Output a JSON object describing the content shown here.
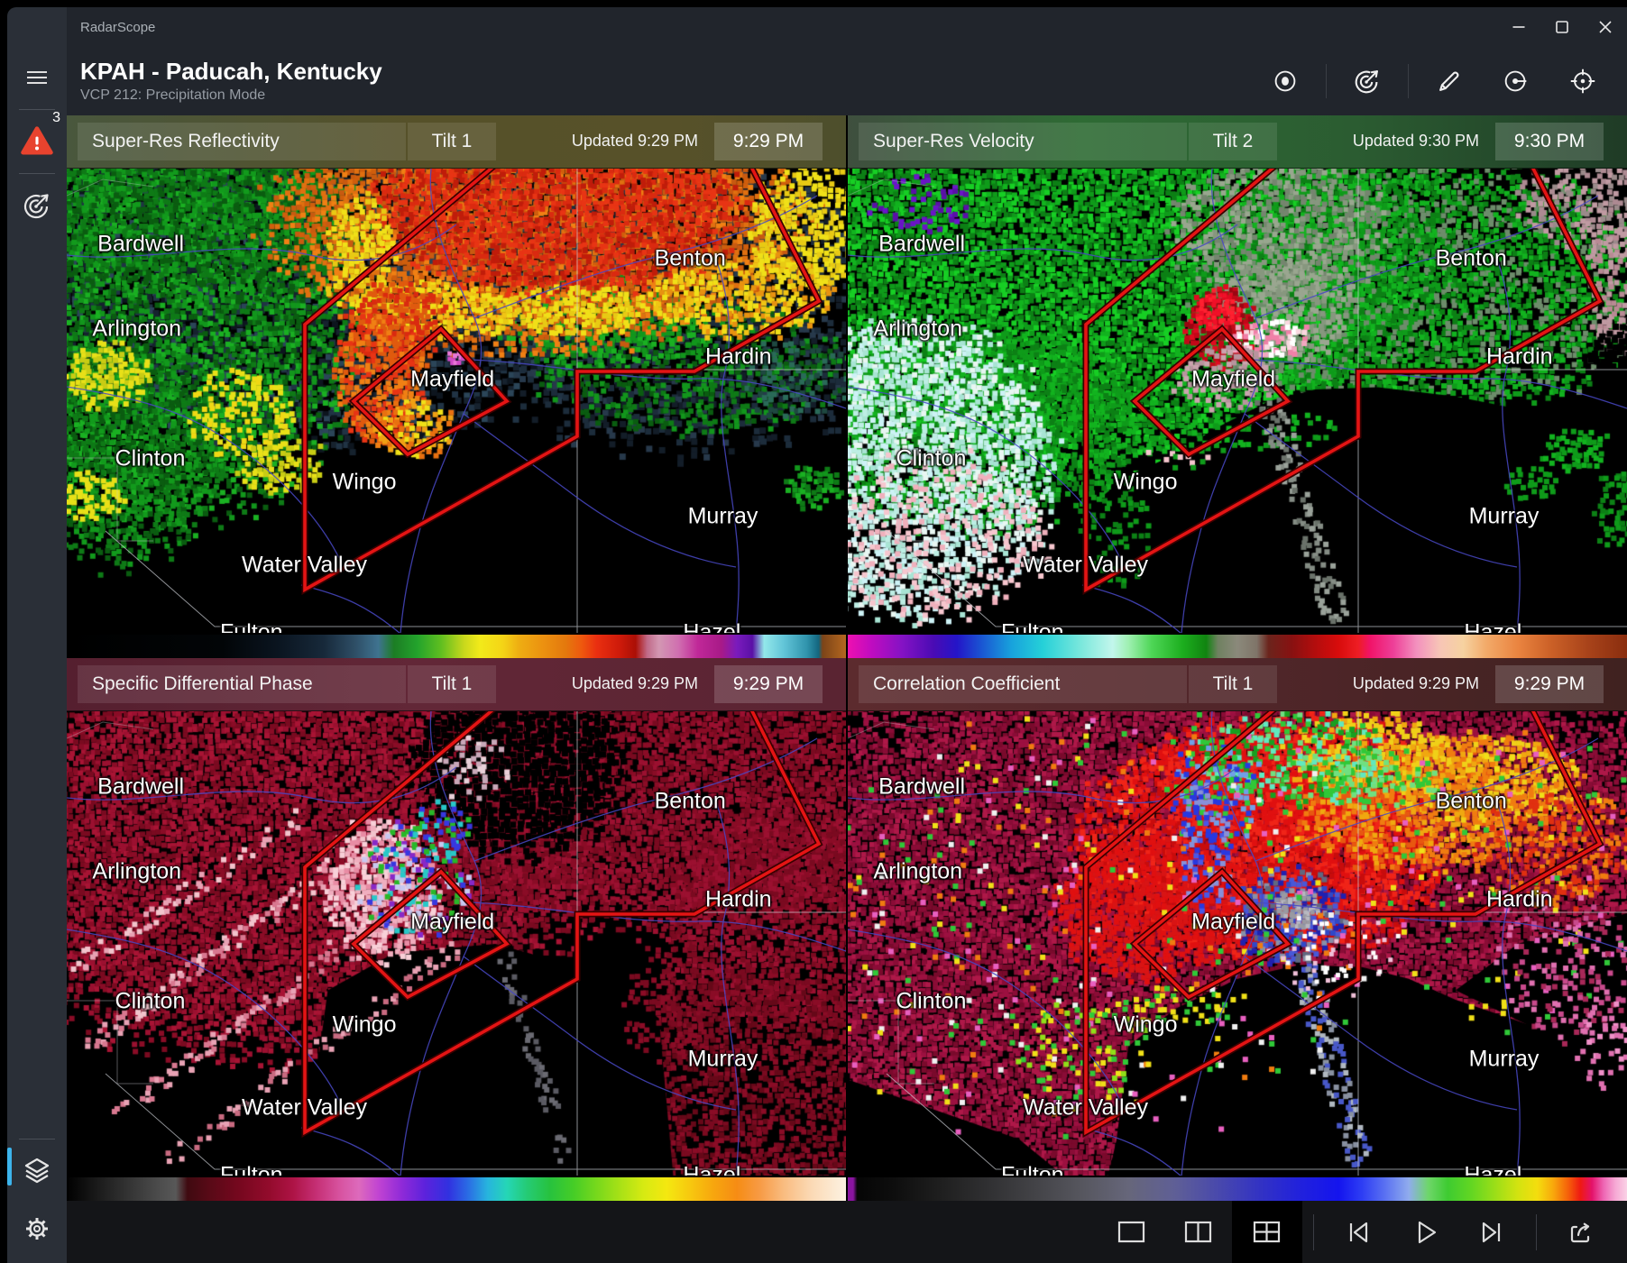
{
  "window": {
    "title": "RadarScope",
    "controls": [
      "minimize",
      "maximize",
      "close"
    ]
  },
  "sidebar": {
    "alert_count": "3",
    "icons": [
      "menu-icon",
      "warning-triangle-icon",
      "radar-sweep-icon",
      "layers-icon",
      "settings-gear-icon"
    ],
    "accent_color": "#3cb4ec"
  },
  "header": {
    "station": "KPAH - Paducah, Kentucky",
    "mode": "VCP 212: Precipitation Mode",
    "icons": [
      "record-icon",
      "radar-sweep-icon",
      "draw-pencil-icon",
      "range-ring-icon",
      "location-crosshair-icon"
    ]
  },
  "panels": [
    {
      "product": "Super-Res Reflectivity",
      "tilt": "Tilt 1",
      "updated": "Updated 9:29 PM",
      "time": "9:29 PM"
    },
    {
      "product": "Super-Res Velocity",
      "tilt": "Tilt 2",
      "updated": "Updated 9:30 PM",
      "time": "9:30 PM"
    },
    {
      "product": "Specific Differential Phase",
      "tilt": "Tilt 1",
      "updated": "Updated 9:29 PM",
      "time": "9:29 PM"
    },
    {
      "product": "Correlation Coefficient",
      "tilt": "Tilt 1",
      "updated": "Updated 9:29 PM",
      "time": "9:29 PM"
    }
  ],
  "map": {
    "cities": [
      "Bardwell",
      "Arlington",
      "Clinton",
      "Mayfield",
      "Wingo",
      "Water Valley",
      "Fulton",
      "Benton",
      "Hardin",
      "Murray",
      "Hazel"
    ],
    "warning_polygon_color": "#e41414",
    "road_color": "#4848c4",
    "county_line_color": "#c9ccd2"
  },
  "colorbars": {
    "refl": [
      "#000000 0%",
      "#020507 20%",
      "#0a141f 27%",
      "#17293a 33%",
      "#2e4e66 37%",
      "#3f7390 40%",
      "#1c7d24 42%",
      "#23a32c 45%",
      "#5fbe20 48%",
      "#c9d81c 51%",
      "#f2ea1a 53%",
      "#f4d416 56%",
      "#eeae12 58%",
      "#ec9210 61%",
      "#e4790d 64%",
      "#ee5a0e 66%",
      "#ea2f10 68%",
      "#cd1a0a 71%",
      "#ab0f06 73%",
      "#c06a88 74.5%",
      "#d397b2 76%",
      "#d06fb0 78.5%",
      "#c02898 81%",
      "#a81a88 84%",
      "#7a1bbd 86%",
      "#5a10a6 88%",
      "#93e8ea 89.5%",
      "#62c5d8 92%",
      "#2f93ac 95%",
      "#13667e 96.5%",
      "#7c4418 97%",
      "#b4671f 100%"
    ],
    "vel": [
      "#ee10b0 0%",
      "#c00cc0 3%",
      "#8412c4 7%",
      "#4a0bb4 11%",
      "#2415c8 14%",
      "#1a52d2 17%",
      "#18a2dc 21%",
      "#25d0d8 25%",
      "#7ce8dc 30%",
      "#c2f6ec 34%",
      "#9ff0b2 36%",
      "#4ed656 39%",
      "#1cae1e 43%",
      "#108410 46%",
      "#6f8160 47.5%",
      "#8b897b 50%",
      "#7f7468 52.5%",
      "#6b241c 54%",
      "#881111 57%",
      "#b30d0d 60%",
      "#d80c0c 63%",
      "#ee1d24 65.5%",
      "#f01368 67%",
      "#ee3f98 70%",
      "#f391be 73%",
      "#f7c5b6 76%",
      "#f6d2a0 79%",
      "#f2a968 82%",
      "#ea8440 86%",
      "#cd6228 90%",
      "#a8431a 95%",
      "#8a2d0e 100%"
    ],
    "kdp": [
      "#000000 0%",
      "#1b1b1b 4%",
      "#343434 8%",
      "#4d4d4d 12%",
      "#585858 14%",
      "#3f0a10 15.5%",
      "#560a16 18%",
      "#75081e 22%",
      "#930b2c 26%",
      "#ad1345 29%",
      "#c52f74 32%",
      "#d7529f 35%",
      "#dd6abc 37.5%",
      "#c144d2 40%",
      "#8f2ad8 43%",
      "#5c22dc 46%",
      "#3131e0 49%",
      "#2a6ce4 51.5%",
      "#27b4de 54%",
      "#25d6b6 56.5%",
      "#25cb76 59%",
      "#27c23e 62%",
      "#45cd27 65%",
      "#77d81c 68%",
      "#a8e116 71%",
      "#d6ea12 74%",
      "#f4e810 77%",
      "#f7c80f 80%",
      "#f7a60e 83%",
      "#f68c14 86%",
      "#f79b46 89%",
      "#f9bc80 92%",
      "#fbd9b4 95.5%",
      "#fdf2e2 100%"
    ],
    "cc": [
      "#8a14a0 0%",
      "#8a14a0 0.7%",
      "#050505 1.2%",
      "#0e0e0e 6%",
      "#1f1f1f 12%",
      "#303032 18%",
      "#434347 24%",
      "#56565e 30%",
      "#66667a 36%",
      "#5f5f96 42%",
      "#4747ae 48%",
      "#3232c4 53%",
      "#2121dc 58%",
      "#1414ee 63%",
      "#2e3ef4 66%",
      "#5b72f2 69%",
      "#90aced 72%",
      "#6ed66a 74.5%",
      "#3ecb31 77%",
      "#62d622 80%",
      "#9ade18 83%",
      "#d3e310 86%",
      "#f4dd0e 88.5%",
      "#f8a90c 90.5%",
      "#f55e0a 92.5%",
      "#ef1a12 94%",
      "#e4126a 95.5%",
      "#ee66b4 97%",
      "#f6a8d4 98.5%",
      "#fad2e6 100%"
    ]
  },
  "toolbar": {
    "icons": [
      "single-pane",
      "dual-pane",
      "quad-pane",
      "previous-frame",
      "play",
      "next-frame",
      "share"
    ],
    "active": "quad-pane"
  }
}
